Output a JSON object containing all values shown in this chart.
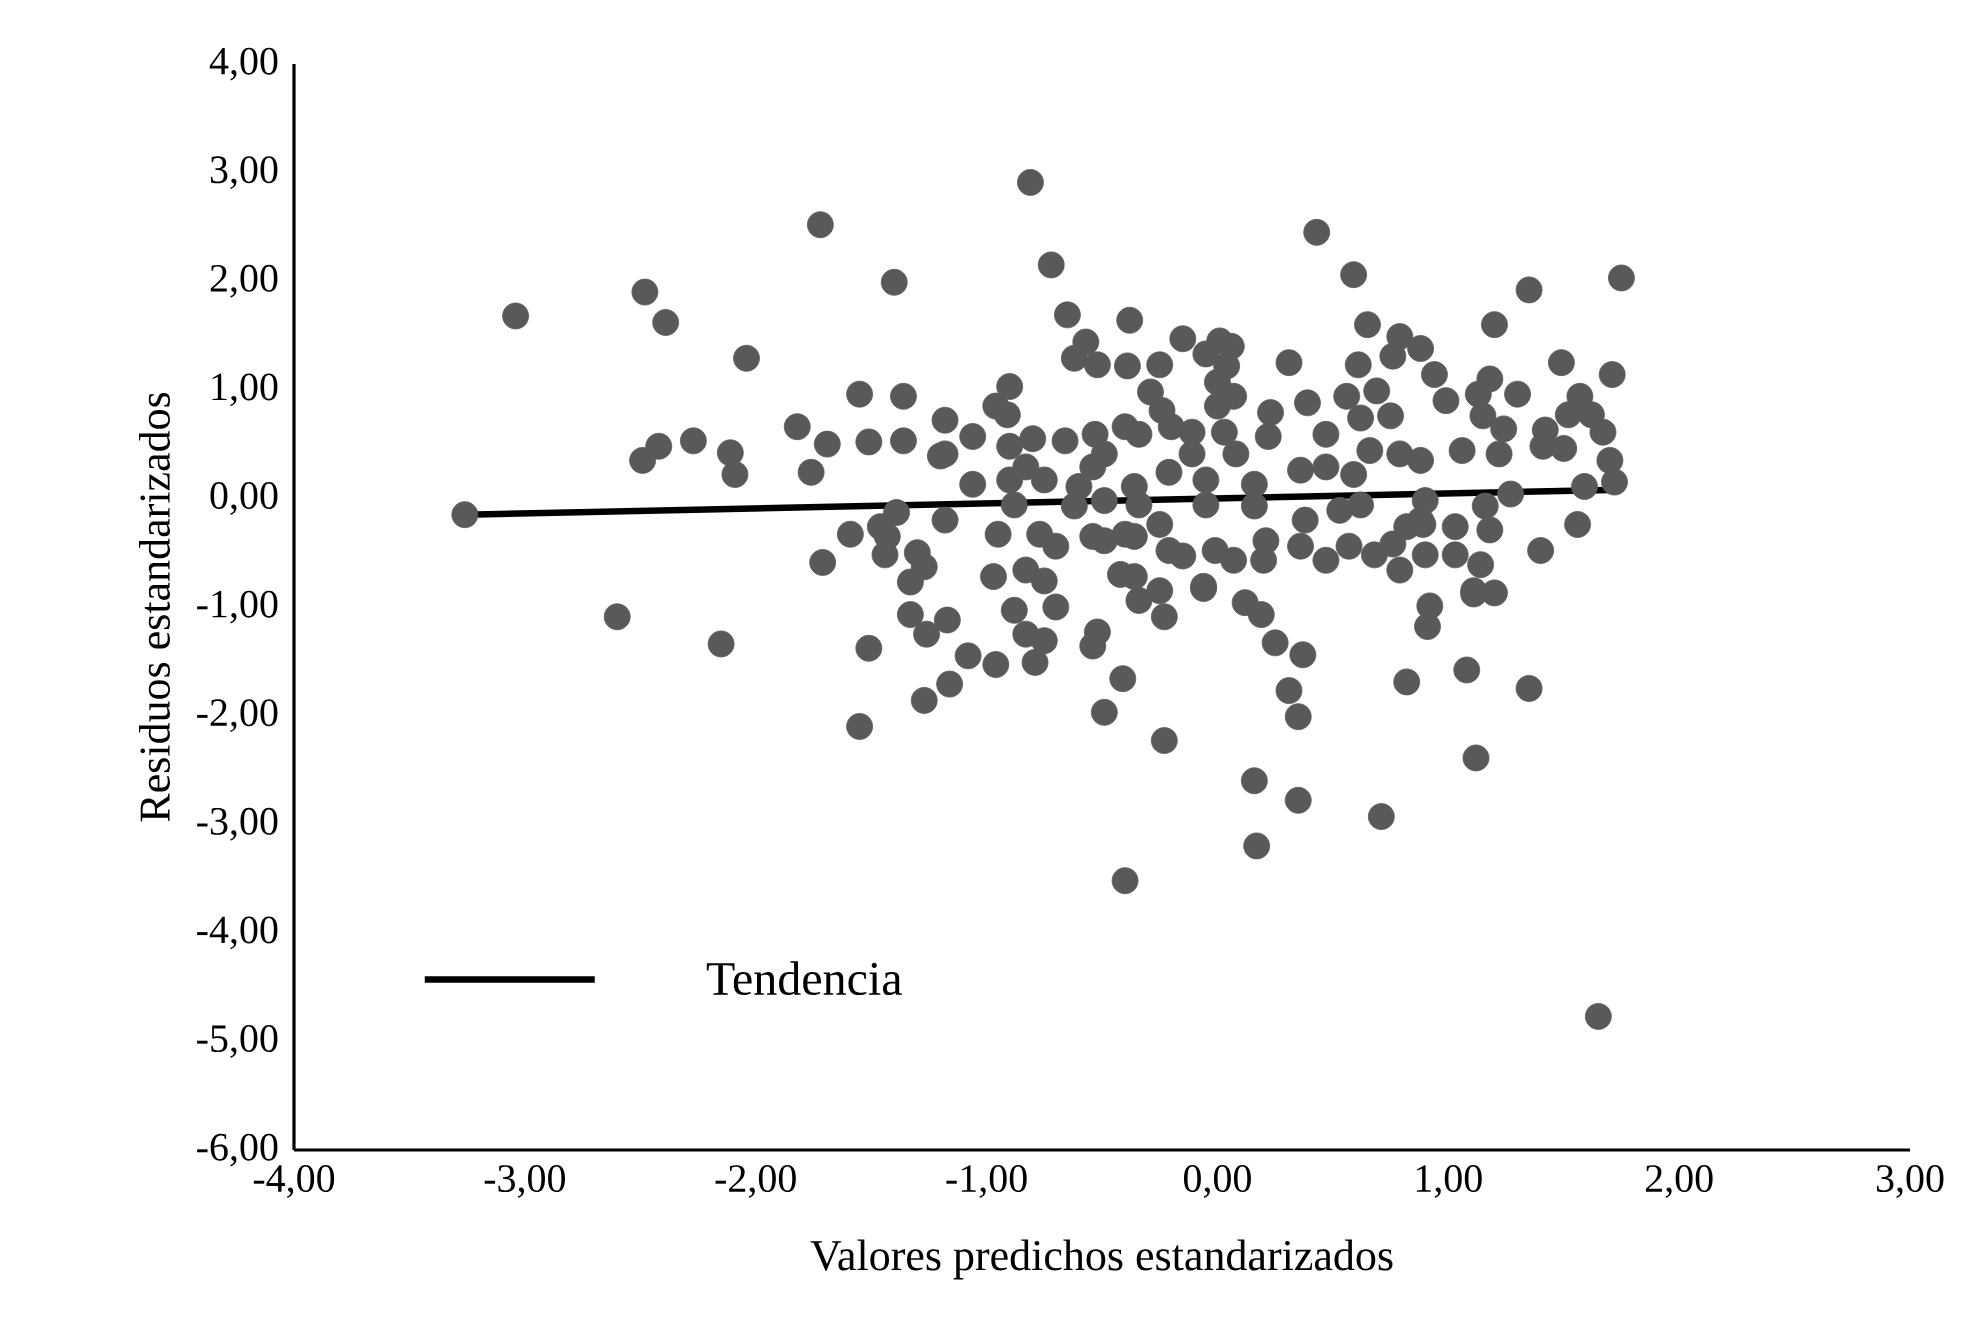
{
  "chart_data": {
    "type": "scatter",
    "xlabel": "Valores predichos estandarizados",
    "ylabel": "Residuos estandarizados",
    "xlim": [
      -4,
      3
    ],
    "ylim": [
      -6,
      4
    ],
    "xticks": [
      {
        "value": -4,
        "label": "-4,00"
      },
      {
        "value": -3,
        "label": "-3,00"
      },
      {
        "value": -2,
        "label": "-2,00"
      },
      {
        "value": -1,
        "label": "-1,00"
      },
      {
        "value": 0,
        "label": "0,00"
      },
      {
        "value": 1,
        "label": "1,00"
      },
      {
        "value": 2,
        "label": "2,00"
      },
      {
        "value": 3,
        "label": "3,00"
      }
    ],
    "yticks": [
      {
        "value": -6,
        "label": "-6,00"
      },
      {
        "value": -5,
        "label": "-5,00"
      },
      {
        "value": -4,
        "label": "-4,00"
      },
      {
        "value": -3,
        "label": "-3,00"
      },
      {
        "value": -2,
        "label": "-2,00"
      },
      {
        "value": -1,
        "label": "-1,00"
      },
      {
        "value": 0,
        "label": "0,00"
      },
      {
        "value": 1,
        "label": "1,00"
      },
      {
        "value": 2,
        "label": "2,00"
      },
      {
        "value": 3,
        "label": "3,00"
      },
      {
        "value": 4,
        "label": "4,00"
      }
    ],
    "grid": false,
    "legend": "bottom left",
    "series": [
      {
        "marker": "circle",
        "color": "#595959",
        "x": [
          -3.26,
          -3.04,
          -1.72,
          -1.4,
          -2.48,
          -2.39,
          -2.04,
          -1.55,
          -1.36,
          -1.82,
          -1.69,
          -1.51,
          -1.36,
          -1.18,
          -1.2,
          -2.42,
          -2.49,
          -2.27,
          -2.11,
          -2.09,
          -1.76,
          -1.59,
          -1.46,
          -1.43,
          -1.71,
          -1.44,
          -1.3,
          -1.27,
          -1.33,
          -1.39,
          -2.6,
          -1.33,
          -1.17,
          -2.15,
          -1.51,
          -1.55,
          -1.27,
          -1.16,
          -1.26,
          -0.81,
          -0.72,
          -0.65,
          -0.38,
          0.43,
          0.59,
          0.65,
          -0.57,
          -0.62,
          -0.52,
          -0.39,
          -0.25,
          -0.15,
          -0.05,
          0.01,
          0.06,
          0.04,
          0.0,
          0.07,
          0.0,
          0.31,
          0.39,
          0.23,
          0.61,
          0.79,
          0.88,
          0.76,
          0.69,
          0.56,
          0.62,
          0.75,
          0.94,
          -0.29,
          -0.24,
          -0.2,
          -0.11,
          0.03,
          0.08,
          -0.11,
          -0.21,
          0.22,
          0.47,
          0.66,
          0.79,
          -0.9,
          -0.96,
          -0.91,
          -0.8,
          -0.66,
          -0.53,
          -0.4,
          -0.34,
          -0.49,
          -0.54,
          -0.9,
          -1.06,
          -0.83,
          -0.9,
          -0.75,
          -1.06,
          -1.18,
          -0.6,
          -0.36,
          -0.05,
          0.16,
          0.36,
          0.47,
          0.59,
          0.88,
          -1.18,
          -0.88,
          -0.62,
          -0.49,
          -0.34,
          -0.05,
          0.16,
          0.38,
          0.53,
          0.62,
          0.82,
          0.88,
          -0.95,
          -0.77,
          -0.7,
          -0.54,
          -0.49,
          -0.4,
          -0.25,
          -0.36,
          -0.21,
          -0.15,
          -0.01,
          0.07,
          0.21,
          0.36,
          0.47,
          0.57,
          0.68,
          0.76,
          0.79,
          0.9,
          -0.97,
          -0.83,
          -0.75,
          -0.42,
          -0.36,
          -0.25,
          -0.06,
          0.2,
          -1.08,
          -0.96,
          -0.79,
          -0.75,
          -0.88,
          -0.83,
          -0.7,
          -0.54,
          -0.52,
          -0.41,
          -0.49,
          -0.23,
          -0.4,
          -0.34,
          -0.23,
          -0.06,
          0.12,
          0.19,
          0.25,
          0.37,
          0.31,
          0.35,
          0.16,
          0.35,
          0.17,
          0.71,
          0.82,
          0.91,
          0.92,
          1.08,
          1.35,
          1.12,
          1.65,
          1.11,
          1.2,
          1.75,
          1.35,
          1.2,
          1.49,
          1.71,
          0.99,
          1.13,
          1.18,
          1.3,
          1.57,
          1.15,
          1.24,
          1.42,
          1.52,
          1.62,
          1.67,
          1.41,
          1.5,
          1.22,
          1.06,
          1.7,
          1.72,
          1.59,
          1.27,
          1.16,
          0.9,
          0.89,
          1.03,
          1.18,
          1.56,
          1.4,
          1.03,
          1.14,
          1.11
        ],
        "values": [
          -0.15,
          1.68,
          2.52,
          1.99,
          1.9,
          1.62,
          1.29,
          0.96,
          0.94,
          0.66,
          0.5,
          0.52,
          0.53,
          0.72,
          0.39,
          0.48,
          0.35,
          0.53,
          0.42,
          0.22,
          0.24,
          -0.33,
          -0.26,
          -0.35,
          -0.59,
          -0.52,
          -0.5,
          -0.63,
          -0.77,
          -0.13,
          -1.09,
          -1.07,
          -1.12,
          -1.34,
          -1.38,
          -2.1,
          -1.86,
          -1.71,
          -1.25,
          2.91,
          2.15,
          1.69,
          1.64,
          2.45,
          2.06,
          1.6,
          1.44,
          1.29,
          1.23,
          1.22,
          1.23,
          1.47,
          1.33,
          1.45,
          1.4,
          1.22,
          1.07,
          0.94,
          0.85,
          1.25,
          0.88,
          0.79,
          1.23,
          1.49,
          1.38,
          1.31,
          0.99,
          0.94,
          0.74,
          0.76,
          1.14,
          0.98,
          0.81,
          0.66,
          0.61,
          0.61,
          0.41,
          0.41,
          0.24,
          0.57,
          0.59,
          0.44,
          0.41,
          1.03,
          0.85,
          0.77,
          0.55,
          0.53,
          0.59,
          0.66,
          0.59,
          0.41,
          0.29,
          0.48,
          0.57,
          0.29,
          0.17,
          0.17,
          0.13,
          0.41,
          0.11,
          0.11,
          0.17,
          0.13,
          0.26,
          0.29,
          0.22,
          0.35,
          -0.2,
          -0.06,
          -0.07,
          -0.02,
          -0.06,
          -0.06,
          -0.07,
          -0.2,
          -0.11,
          -0.06,
          -0.26,
          -0.2,
          -0.33,
          -0.33,
          -0.44,
          -0.35,
          -0.39,
          -0.33,
          -0.24,
          -0.35,
          -0.48,
          -0.53,
          -0.48,
          -0.57,
          -0.39,
          -0.44,
          -0.57,
          -0.44,
          -0.52,
          -0.42,
          -0.66,
          -0.52,
          -0.72,
          -0.66,
          -0.76,
          -0.7,
          -0.72,
          -0.85,
          -0.81,
          -0.57,
          -1.45,
          -1.53,
          -1.51,
          -1.31,
          -1.03,
          -1.25,
          -1.0,
          -1.36,
          -1.23,
          -1.66,
          -1.97,
          -2.23,
          -3.52,
          -0.94,
          -1.09,
          -0.83,
          -0.96,
          -1.07,
          -1.33,
          -1.44,
          -1.77,
          -2.01,
          -2.6,
          -2.78,
          -3.2,
          -2.93,
          -1.69,
          -1.18,
          -0.99,
          -1.58,
          -1.75,
          -2.39,
          -4.77,
          -0.88,
          -0.87,
          2.03,
          1.92,
          1.6,
          1.25,
          1.14,
          0.9,
          0.96,
          1.1,
          0.96,
          0.94,
          0.76,
          0.64,
          0.63,
          0.77,
          0.77,
          0.61,
          0.48,
          0.46,
          0.41,
          0.44,
          0.35,
          0.15,
          0.11,
          0.04,
          -0.07,
          -0.02,
          -0.24,
          -0.26,
          -0.29,
          -0.24,
          -0.48,
          -0.52,
          -0.61,
          -0.85
        ]
      },
      {
        "type": "line",
        "marker": "none",
        "name": "Tendencia",
        "color": "#000000",
        "x": [
          -3.26,
          1.75
        ],
        "values": [
          -0.15,
          0.08
        ]
      }
    ]
  }
}
